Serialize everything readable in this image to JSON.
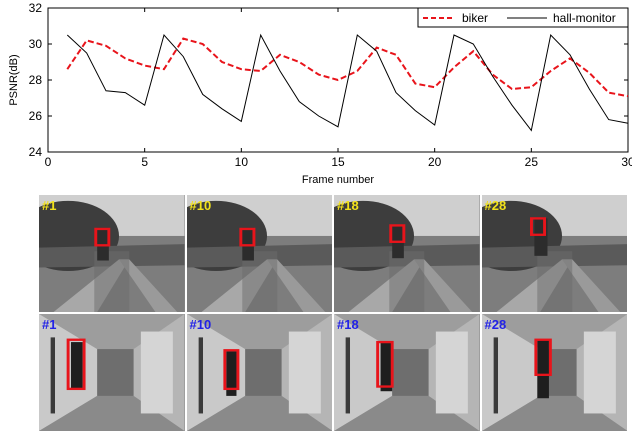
{
  "chart_data": {
    "type": "line",
    "title": "",
    "xlabel": "Frame number",
    "ylabel": "PSNR(dB)",
    "xlim": [
      0,
      30
    ],
    "ylim": [
      24,
      32
    ],
    "xticks": [
      0,
      5,
      10,
      15,
      20,
      25,
      30
    ],
    "yticks": [
      24,
      26,
      28,
      30,
      32
    ],
    "grid": false,
    "legend_position": "top-right",
    "series": [
      {
        "name": "biker",
        "color": "#e8141b",
        "style": "dashed",
        "x": [
          1,
          2,
          3,
          4,
          5,
          6,
          7,
          8,
          9,
          10,
          11,
          12,
          13,
          14,
          15,
          16,
          17,
          18,
          19,
          20,
          21,
          22,
          23,
          24,
          25,
          26,
          27,
          28,
          29,
          30
        ],
        "values": [
          28.6,
          30.2,
          29.9,
          29.2,
          28.8,
          28.6,
          30.3,
          30.0,
          29.0,
          28.6,
          28.5,
          29.4,
          29.0,
          28.3,
          28.0,
          28.5,
          29.8,
          29.4,
          27.8,
          27.6,
          28.7,
          29.6,
          28.3,
          27.5,
          27.6,
          28.5,
          29.2,
          28.4,
          27.3,
          27.1
        ]
      },
      {
        "name": "hall-monitor",
        "color": "#000000",
        "style": "solid",
        "x": [
          1,
          2,
          3,
          4,
          5,
          6,
          7,
          8,
          9,
          10,
          11,
          12,
          13,
          14,
          15,
          16,
          17,
          18,
          19,
          20,
          21,
          22,
          23,
          24,
          25,
          26,
          27,
          28,
          29,
          30
        ],
        "values": [
          30.5,
          29.5,
          27.4,
          27.3,
          26.6,
          30.5,
          29.3,
          27.2,
          26.4,
          25.7,
          30.5,
          28.5,
          26.8,
          26.0,
          25.4,
          30.5,
          29.6,
          27.3,
          26.3,
          25.5,
          30.5,
          30.0,
          28.2,
          26.6,
          25.2,
          30.5,
          29.4,
          27.5,
          25.8,
          25.6
        ]
      }
    ]
  },
  "frames": {
    "biker": [
      {
        "label": "#1",
        "highlight_color": "#e8141b"
      },
      {
        "label": "#10",
        "highlight_color": "#e8141b"
      },
      {
        "label": "#18",
        "highlight_color": "#e8141b"
      },
      {
        "label": "#28",
        "highlight_color": "#e8141b"
      }
    ],
    "hall_monitor": [
      {
        "label": "#1",
        "highlight_color": "#e8141b"
      },
      {
        "label": "#10",
        "highlight_color": "#e8141b"
      },
      {
        "label": "#18",
        "highlight_color": "#e8141b"
      },
      {
        "label": "#28",
        "highlight_color": "#e8141b"
      }
    ]
  },
  "colors": {
    "biker_label": "#f2e21b",
    "hall_label": "#2323e6",
    "tracking_box": "#e8141b"
  }
}
